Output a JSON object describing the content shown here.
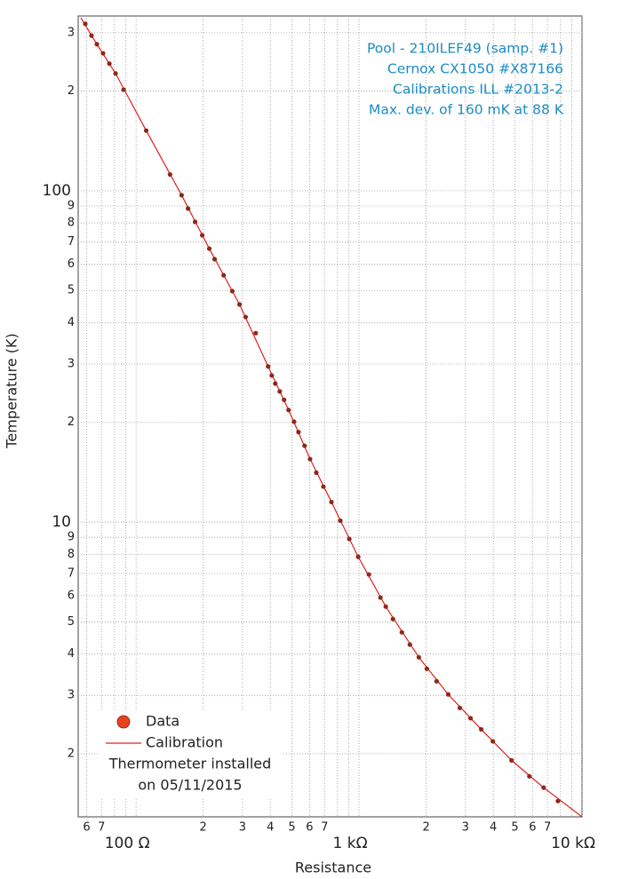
{
  "chart_data": {
    "type": "scatter",
    "xlabel": "Resistance",
    "ylabel": "Temperature (K)",
    "xscale": "log",
    "yscale": "log",
    "xlim": [
      55,
      10000
    ],
    "ylim": [
      1.29,
      337
    ],
    "xticks": [
      {
        "value": 60,
        "label": "6"
      },
      {
        "value": 70,
        "label": "7"
      },
      {
        "value": 100,
        "label": "100  Ω"
      },
      {
        "value": 200,
        "label": "2"
      },
      {
        "value": 300,
        "label": "3"
      },
      {
        "value": 400,
        "label": "4"
      },
      {
        "value": 500,
        "label": "5"
      },
      {
        "value": 600,
        "label": "6"
      },
      {
        "value": 700,
        "label": "7"
      },
      {
        "value": 1000,
        "label": "1 kΩ"
      },
      {
        "value": 2000,
        "label": "2"
      },
      {
        "value": 3000,
        "label": "3"
      },
      {
        "value": 4000,
        "label": "4"
      },
      {
        "value": 5000,
        "label": "5"
      },
      {
        "value": 6000,
        "label": "6"
      },
      {
        "value": 7000,
        "label": "7"
      },
      {
        "value": 10000,
        "label": "10 kΩ"
      }
    ],
    "x_minor_ticks": [
      80,
      90,
      800,
      900,
      8000,
      9000
    ],
    "yticks": [
      {
        "value": 300,
        "label": "3"
      },
      {
        "value": 200,
        "label": "2"
      },
      100,
      {
        "value": 90,
        "label": "9"
      },
      {
        "value": 80,
        "label": "8"
      },
      {
        "value": 70,
        "label": "7"
      },
      {
        "value": 60,
        "label": "6"
      },
      {
        "value": 50,
        "label": "5"
      },
      {
        "value": 40,
        "label": "4"
      },
      {
        "value": 30,
        "label": "3"
      },
      {
        "value": 20,
        "label": "2"
      },
      10,
      9,
      8,
      7,
      6,
      5,
      4,
      3,
      2
    ],
    "grid": true,
    "legend": "lower left",
    "annotations": [
      "Pool - 210ILEF49 (samp. #1)",
      "Cernox CX1050 #X87166",
      "Calibrations ILL #2013-2",
      "Max. dev. of 160 mK at 88 K"
    ],
    "legend_note": [
      "Thermometer installed",
      "on 05/11/2015"
    ],
    "series": [
      {
        "name": "Data",
        "color": "#8b2a1a",
        "legend_color": "#e8401c",
        "marker": "circle",
        "x": [
          59.2,
          63.1,
          66.7,
          71.1,
          75.9,
          80.9,
          87.9,
          111,
          142,
          160,
          171,
          184,
          198,
          213,
          225,
          247,
          270,
          291,
          310,
          344,
          391,
          406,
          421,
          441,
          461,
          483,
          511,
          535,
          570,
          603,
          643,
          692,
          752,
          824,
          904,
          991,
          1107,
          1247,
          1318,
          1419,
          1556,
          1690,
          1854,
          2014,
          2228,
          2512,
          2831,
          3162,
          3532,
          3981,
          4831,
          5808,
          6730,
          7798
        ],
        "values": [
          319,
          294,
          277,
          260,
          242,
          226,
          202,
          152,
          112,
          97,
          88.4,
          80.6,
          73.4,
          66.9,
          62.2,
          55.6,
          49.8,
          45.4,
          41.6,
          37.2,
          29.5,
          27.7,
          26.2,
          24.8,
          23.4,
          21.8,
          20.1,
          18.7,
          17.0,
          15.5,
          14.1,
          12.8,
          11.5,
          10.1,
          8.9,
          7.86,
          6.95,
          5.92,
          5.56,
          5.1,
          4.65,
          4.27,
          3.91,
          3.61,
          3.31,
          3.02,
          2.75,
          2.56,
          2.37,
          2.18,
          1.91,
          1.71,
          1.58,
          1.44
        ]
      },
      {
        "name": "Calibration",
        "color": "#e02020",
        "marker": "line",
        "x": [
          56.5,
          66.7,
          80.9,
          111,
          160,
          213,
          291,
          391,
          483,
          603,
          752,
          991,
          1318,
          1854,
          2512,
          3532,
          4831,
          6730,
          10000
        ],
        "values": [
          333,
          277,
          226,
          152,
          97,
          66.9,
          45.4,
          29.5,
          21.8,
          15.5,
          11.5,
          7.86,
          5.56,
          3.91,
          3.02,
          2.37,
          1.91,
          1.58,
          1.29
        ]
      }
    ]
  }
}
